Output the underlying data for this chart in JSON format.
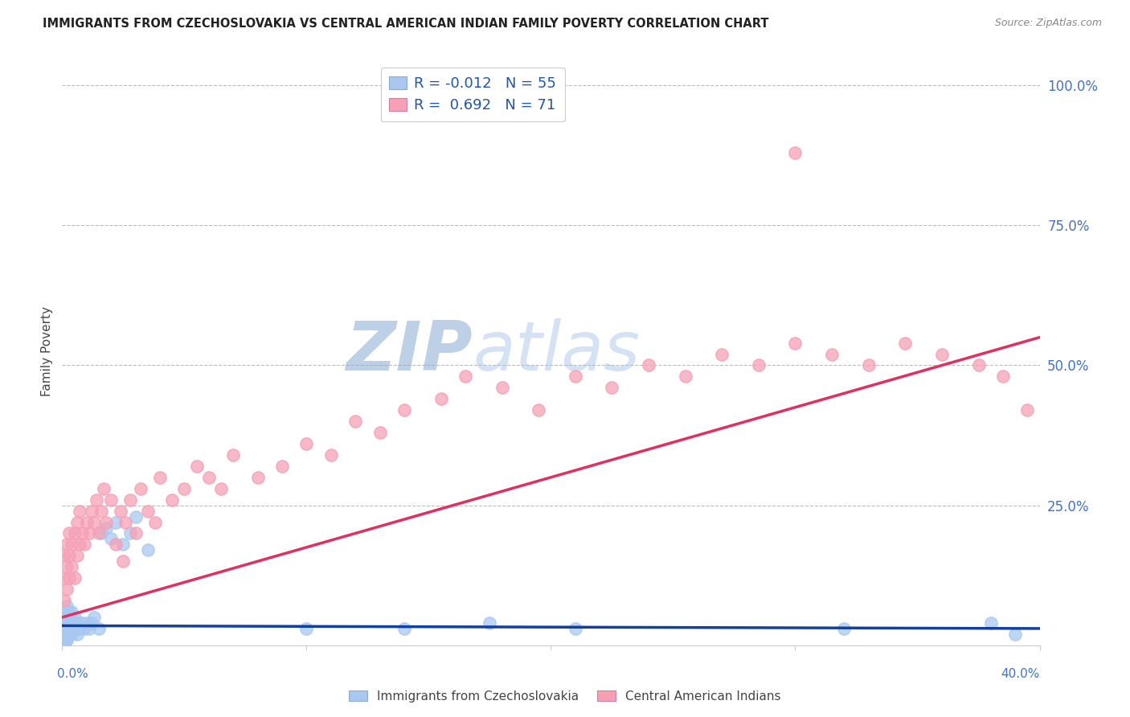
{
  "title": "IMMIGRANTS FROM CZECHOSLOVAKIA VS CENTRAL AMERICAN INDIAN FAMILY POVERTY CORRELATION CHART",
  "source": "Source: ZipAtlas.com",
  "ylabel": "Family Poverty",
  "right_yticks": [
    "100.0%",
    "75.0%",
    "50.0%",
    "25.0%"
  ],
  "right_ytick_vals": [
    1.0,
    0.75,
    0.5,
    0.25
  ],
  "xlim": [
    0.0,
    0.4
  ],
  "ylim": [
    0.0,
    1.05
  ],
  "legend_r1": "R = -0.012",
  "legend_n1": "N = 55",
  "legend_r2": "R =  0.692",
  "legend_n2": "N = 71",
  "color_blue": "#A8C8F0",
  "color_pink": "#F5A0B5",
  "line_blue": "#1040A0",
  "line_pink": "#E03060",
  "watermark_zip": "ZIP",
  "watermark_atlas": "atlas",
  "watermark_color": "#C8D8F0",
  "legend_label1": "Immigrants from Czechoslovakia",
  "legend_label2": "Central American Indians",
  "blue_trend_x": [
    0.0,
    0.4
  ],
  "blue_trend_y": [
    0.035,
    0.03
  ],
  "pink_trend_x": [
    0.0,
    0.4
  ],
  "pink_trend_y": [
    0.05,
    0.55
  ],
  "blue_scatter_x": [
    0.001,
    0.001,
    0.001,
    0.001,
    0.001,
    0.001,
    0.001,
    0.001,
    0.001,
    0.001,
    0.002,
    0.002,
    0.002,
    0.002,
    0.002,
    0.002,
    0.002,
    0.002,
    0.002,
    0.002,
    0.003,
    0.003,
    0.003,
    0.003,
    0.003,
    0.004,
    0.004,
    0.004,
    0.005,
    0.005,
    0.006,
    0.006,
    0.007,
    0.008,
    0.009,
    0.01,
    0.011,
    0.012,
    0.013,
    0.015,
    0.016,
    0.018,
    0.02,
    0.022,
    0.025,
    0.028,
    0.03,
    0.035,
    0.1,
    0.14,
    0.175,
    0.21,
    0.32,
    0.38,
    0.39
  ],
  "blue_scatter_y": [
    0.01,
    0.01,
    0.01,
    0.02,
    0.02,
    0.02,
    0.03,
    0.03,
    0.04,
    0.05,
    0.01,
    0.01,
    0.02,
    0.02,
    0.03,
    0.03,
    0.04,
    0.05,
    0.06,
    0.07,
    0.02,
    0.03,
    0.04,
    0.05,
    0.06,
    0.02,
    0.04,
    0.06,
    0.03,
    0.05,
    0.02,
    0.04,
    0.03,
    0.04,
    0.03,
    0.04,
    0.03,
    0.04,
    0.05,
    0.03,
    0.2,
    0.21,
    0.19,
    0.22,
    0.18,
    0.2,
    0.23,
    0.17,
    0.03,
    0.03,
    0.04,
    0.03,
    0.03,
    0.04,
    0.02
  ],
  "pink_scatter_x": [
    0.001,
    0.001,
    0.001,
    0.002,
    0.002,
    0.002,
    0.003,
    0.003,
    0.003,
    0.004,
    0.004,
    0.005,
    0.005,
    0.006,
    0.006,
    0.007,
    0.007,
    0.008,
    0.009,
    0.01,
    0.011,
    0.012,
    0.013,
    0.014,
    0.015,
    0.016,
    0.017,
    0.018,
    0.02,
    0.022,
    0.024,
    0.026,
    0.028,
    0.03,
    0.032,
    0.035,
    0.038,
    0.04,
    0.045,
    0.05,
    0.055,
    0.06,
    0.065,
    0.07,
    0.08,
    0.09,
    0.1,
    0.11,
    0.12,
    0.13,
    0.14,
    0.155,
    0.165,
    0.18,
    0.195,
    0.21,
    0.225,
    0.24,
    0.255,
    0.27,
    0.285,
    0.3,
    0.315,
    0.33,
    0.345,
    0.36,
    0.375,
    0.385,
    0.395,
    0.025,
    0.3
  ],
  "pink_scatter_y": [
    0.08,
    0.12,
    0.16,
    0.1,
    0.14,
    0.18,
    0.12,
    0.16,
    0.2,
    0.14,
    0.18,
    0.12,
    0.2,
    0.16,
    0.22,
    0.18,
    0.24,
    0.2,
    0.18,
    0.22,
    0.2,
    0.24,
    0.22,
    0.26,
    0.2,
    0.24,
    0.28,
    0.22,
    0.26,
    0.18,
    0.24,
    0.22,
    0.26,
    0.2,
    0.28,
    0.24,
    0.22,
    0.3,
    0.26,
    0.28,
    0.32,
    0.3,
    0.28,
    0.34,
    0.3,
    0.32,
    0.36,
    0.34,
    0.4,
    0.38,
    0.42,
    0.44,
    0.48,
    0.46,
    0.42,
    0.48,
    0.46,
    0.5,
    0.48,
    0.52,
    0.5,
    0.54,
    0.52,
    0.5,
    0.54,
    0.52,
    0.5,
    0.48,
    0.42,
    0.15,
    0.88
  ]
}
